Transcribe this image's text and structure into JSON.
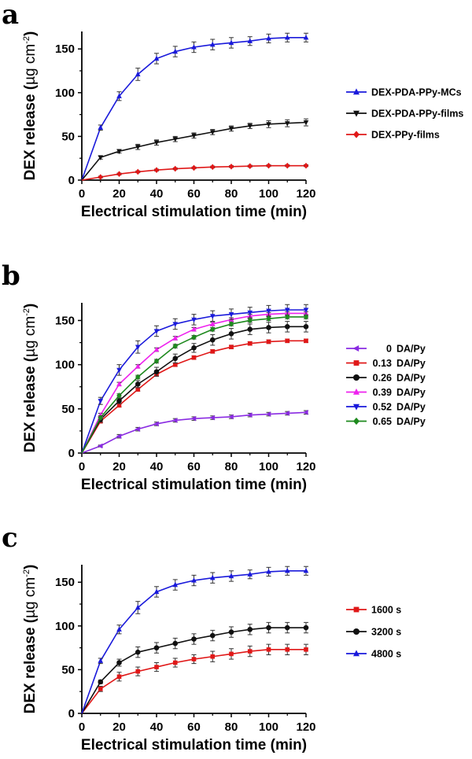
{
  "chart_data": [
    {
      "panel": "a",
      "type": "line",
      "ylabel_main": "DEX release (",
      "ylabel_unit": "µg cm",
      "ylabel_exp": "-2",
      "ylabel_close": ")",
      "xlabel": "Electrical stimulation time (min)",
      "xlim": [
        0,
        120
      ],
      "ylim": [
        0,
        170
      ],
      "xticks": [
        0,
        20,
        40,
        60,
        80,
        100,
        120
      ],
      "yticks": [
        0,
        50,
        100,
        150
      ],
      "legend_position": "right",
      "x": [
        0,
        10,
        20,
        30,
        40,
        50,
        60,
        70,
        80,
        90,
        100,
        110,
        120
      ],
      "series": [
        {
          "name": "DEX-PDA-PPy-MCs",
          "color": "#1a1adb",
          "marker": "triangle-up",
          "values": [
            0,
            60,
            96,
            121,
            139,
            147,
            152,
            155,
            157,
            159,
            162,
            163,
            163
          ],
          "errors": [
            0,
            3,
            5,
            7,
            6,
            6,
            6,
            6,
            6,
            5,
            5,
            5,
            5
          ]
        },
        {
          "name": "DEX-PDA-PPy-films",
          "color": "#111111",
          "marker": "triangle-down",
          "values": [
            0,
            26,
            33,
            38,
            43,
            47,
            51,
            55,
            59,
            62,
            64,
            65,
            66
          ],
          "errors": [
            0,
            2,
            2,
            3,
            3,
            3,
            3,
            3,
            3,
            3,
            4,
            4,
            4
          ]
        },
        {
          "name": "DEX-PPy-films",
          "color": "#e01818",
          "marker": "diamond",
          "values": [
            0,
            3.5,
            7,
            9.5,
            11.5,
            13,
            14,
            15,
            15.5,
            16,
            16.5,
            16.5,
            16.5
          ],
          "errors": [
            0,
            1,
            1,
            1,
            1,
            1,
            1,
            1,
            1,
            1,
            1,
            1,
            1
          ]
        }
      ]
    },
    {
      "panel": "b",
      "type": "line",
      "ylabel_main": "DEX release (",
      "ylabel_unit": "µg cm",
      "ylabel_exp": "-2",
      "ylabel_close": ")",
      "xlabel": "Electrical stimulation time (min)",
      "xlim": [
        0,
        120
      ],
      "ylim": [
        0,
        170
      ],
      "xticks": [
        0,
        20,
        40,
        60,
        80,
        100,
        120
      ],
      "yticks": [
        0,
        50,
        100,
        150
      ],
      "legend_position": "right",
      "x": [
        0,
        10,
        20,
        30,
        40,
        50,
        60,
        70,
        80,
        90,
        100,
        110,
        120
      ],
      "series": [
        {
          "name": "0",
          "unit": "DA/Py",
          "color": "#8a2be2",
          "marker": "triangle-left",
          "values": [
            0,
            8,
            19,
            27,
            33,
            37,
            39,
            40,
            41,
            43,
            44,
            45,
            46
          ],
          "errors": [
            0,
            1,
            2,
            2,
            2,
            2,
            2,
            2,
            2,
            2,
            2,
            2,
            2
          ]
        },
        {
          "name": "0.13",
          "unit": "DA/Py",
          "color": "#e01818",
          "marker": "square",
          "values": [
            0,
            36,
            54,
            72,
            89,
            100,
            108,
            115,
            120,
            124,
            126,
            127,
            127
          ],
          "errors": [
            0,
            2,
            2,
            2,
            2,
            2,
            2,
            2,
            2,
            2,
            2,
            2,
            2
          ]
        },
        {
          "name": "0.26",
          "unit": "DA/Py",
          "color": "#111111",
          "marker": "circle",
          "values": [
            0,
            38,
            59,
            78,
            92,
            107,
            119,
            128,
            135,
            140,
            142,
            143,
            143
          ],
          "errors": [
            0,
            3,
            3,
            4,
            5,
            5,
            5,
            6,
            6,
            6,
            6,
            6,
            6
          ]
        },
        {
          "name": "0.39",
          "unit": "DA/Py",
          "color": "#ee22ee",
          "marker": "triangle-up",
          "values": [
            0,
            43,
            78,
            98,
            117,
            130,
            140,
            146,
            151,
            155,
            157,
            158,
            158
          ],
          "errors": [
            0,
            2,
            2,
            2,
            2,
            2,
            2,
            2,
            2,
            2,
            2,
            2,
            2
          ]
        },
        {
          "name": "0.52",
          "unit": "DA/Py",
          "color": "#1a1adb",
          "marker": "triangle-down",
          "values": [
            0,
            59,
            94,
            120,
            138,
            146,
            151,
            155,
            157,
            159,
            161,
            162,
            162
          ],
          "errors": [
            0,
            4,
            6,
            7,
            6,
            6,
            6,
            6,
            6,
            6,
            6,
            6,
            6
          ]
        },
        {
          "name": "0.65",
          "unit": "DA/Py",
          "color": "#1e8a1e",
          "marker": "diamond",
          "values": [
            0,
            40,
            65,
            86,
            104,
            121,
            131,
            140,
            146,
            150,
            152,
            154,
            154
          ],
          "errors": [
            0,
            2,
            2,
            2,
            2,
            2,
            2,
            2,
            2,
            2,
            2,
            2,
            2
          ]
        }
      ]
    },
    {
      "panel": "c",
      "type": "line",
      "ylabel_main": "DEX release (",
      "ylabel_unit": "µg cm",
      "ylabel_exp": "-2",
      "ylabel_close": ")",
      "xlabel": "Electrical stimulation time (min)",
      "xlim": [
        0,
        120
      ],
      "ylim": [
        0,
        170
      ],
      "xticks": [
        0,
        20,
        40,
        60,
        80,
        100,
        120
      ],
      "yticks": [
        0,
        50,
        100,
        150
      ],
      "legend_position": "right",
      "x": [
        0,
        10,
        20,
        30,
        40,
        50,
        60,
        70,
        80,
        90,
        100,
        110,
        120
      ],
      "series": [
        {
          "name": "1600 s",
          "color": "#e01818",
          "marker": "square",
          "values": [
            0,
            28,
            42,
            48,
            53,
            58,
            62,
            65,
            68,
            71,
            73,
            73,
            73
          ],
          "errors": [
            0,
            3,
            5,
            5,
            5,
            5,
            5,
            6,
            6,
            6,
            6,
            6,
            6
          ]
        },
        {
          "name": "3200 s",
          "color": "#111111",
          "marker": "circle",
          "values": [
            0,
            36,
            58,
            70,
            75,
            80,
            85,
            89,
            93,
            96,
            98,
            98,
            98
          ],
          "errors": [
            0,
            2,
            4,
            6,
            6,
            6,
            6,
            6,
            6,
            6,
            6,
            6,
            6
          ]
        },
        {
          "name": "4800 s",
          "color": "#1a1adb",
          "marker": "triangle-up",
          "values": [
            0,
            60,
            96,
            121,
            139,
            147,
            152,
            155,
            157,
            159,
            162,
            163,
            163
          ],
          "errors": [
            0,
            3,
            5,
            7,
            6,
            6,
            6,
            6,
            6,
            5,
            5,
            5,
            5
          ]
        }
      ]
    }
  ]
}
